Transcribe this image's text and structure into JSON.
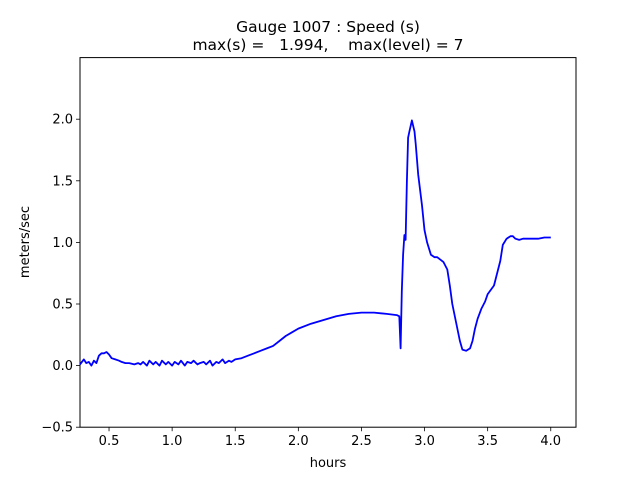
{
  "chart_data": {
    "type": "line",
    "title_line1": "Gauge 1007 : Speed (s)",
    "title_line2": "max(s) =   1.994,    max(level) = 7",
    "xlabel": "hours",
    "ylabel": "meters/sec",
    "xlim": [
      0.27,
      4.2
    ],
    "ylim": [
      -0.5,
      2.5
    ],
    "xticks": [
      {
        "v": 0.5,
        "label": "0.5"
      },
      {
        "v": 1.0,
        "label": "1.0"
      },
      {
        "v": 1.5,
        "label": "1.5"
      },
      {
        "v": 2.0,
        "label": "2.0"
      },
      {
        "v": 2.5,
        "label": "2.5"
      },
      {
        "v": 3.0,
        "label": "3.0"
      },
      {
        "v": 3.5,
        "label": "3.5"
      },
      {
        "v": 4.0,
        "label": "4.0"
      }
    ],
    "yticks": [
      {
        "v": -0.5,
        "label": "−0.5"
      },
      {
        "v": 0.0,
        "label": "0.0"
      },
      {
        "v": 0.5,
        "label": "0.5"
      },
      {
        "v": 1.0,
        "label": "1.0"
      },
      {
        "v": 1.5,
        "label": "1.5"
      },
      {
        "v": 2.0,
        "label": "2.0"
      }
    ],
    "grid": false,
    "line_color": "#0000ff",
    "series": [
      {
        "x": [
          0.27,
          0.3,
          0.32,
          0.34,
          0.36,
          0.38,
          0.4,
          0.42,
          0.44,
          0.46,
          0.48,
          0.5,
          0.52,
          0.55,
          0.58,
          0.6,
          0.63,
          0.66,
          0.7,
          0.73,
          0.75,
          0.77,
          0.8,
          0.82,
          0.85,
          0.87,
          0.9,
          0.92,
          0.95,
          0.97,
          1.0,
          1.02,
          1.05,
          1.07,
          1.1,
          1.12,
          1.15,
          1.17,
          1.2,
          1.22,
          1.25,
          1.27,
          1.3,
          1.32,
          1.35,
          1.37,
          1.4,
          1.42,
          1.45,
          1.47,
          1.5,
          1.55,
          1.6,
          1.65,
          1.7,
          1.75,
          1.8,
          1.85,
          1.9,
          1.95,
          2.0,
          2.1,
          2.2,
          2.3,
          2.4,
          2.5,
          2.6,
          2.7,
          2.78,
          2.8,
          2.81,
          2.82,
          2.83,
          2.84,
          2.85,
          2.86,
          2.87,
          2.88,
          2.9,
          2.92,
          2.93,
          2.95,
          2.98,
          3.0,
          3.02,
          3.05,
          3.08,
          3.1,
          3.15,
          3.18,
          3.2,
          3.22,
          3.25,
          3.28,
          3.3,
          3.33,
          3.36,
          3.38,
          3.4,
          3.42,
          3.45,
          3.48,
          3.5,
          3.55,
          3.6,
          3.62,
          3.65,
          3.68,
          3.7,
          3.72,
          3.75,
          3.78,
          3.8,
          3.85,
          3.9,
          3.95,
          4.0
        ],
        "y": [
          0.01,
          0.05,
          0.02,
          0.03,
          0.0,
          0.04,
          0.02,
          0.08,
          0.1,
          0.1,
          0.11,
          0.09,
          0.06,
          0.05,
          0.04,
          0.03,
          0.02,
          0.02,
          0.01,
          0.02,
          0.01,
          0.03,
          0.0,
          0.04,
          0.01,
          0.03,
          0.0,
          0.04,
          0.01,
          0.03,
          0.0,
          0.03,
          0.01,
          0.04,
          0.0,
          0.03,
          0.02,
          0.04,
          0.01,
          0.02,
          0.03,
          0.01,
          0.04,
          0.0,
          0.03,
          0.02,
          0.05,
          0.02,
          0.04,
          0.03,
          0.05,
          0.06,
          0.08,
          0.1,
          0.12,
          0.14,
          0.16,
          0.2,
          0.24,
          0.27,
          0.3,
          0.34,
          0.37,
          0.4,
          0.42,
          0.43,
          0.43,
          0.42,
          0.41,
          0.4,
          0.14,
          0.6,
          0.9,
          1.06,
          1.02,
          1.5,
          1.85,
          1.9,
          1.99,
          1.9,
          1.8,
          1.55,
          1.3,
          1.1,
          1.0,
          0.9,
          0.88,
          0.88,
          0.84,
          0.78,
          0.65,
          0.5,
          0.35,
          0.2,
          0.13,
          0.12,
          0.14,
          0.2,
          0.3,
          0.38,
          0.46,
          0.52,
          0.58,
          0.65,
          0.85,
          0.98,
          1.03,
          1.05,
          1.05,
          1.03,
          1.02,
          1.03,
          1.03,
          1.03,
          1.03,
          1.04,
          1.04
        ]
      }
    ]
  }
}
